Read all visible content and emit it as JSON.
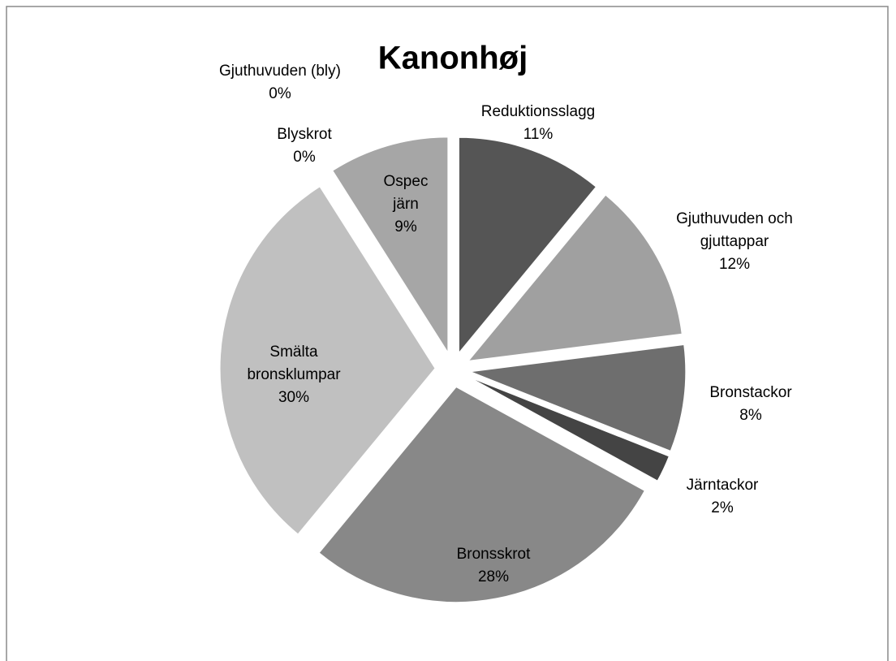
{
  "chart_data": {
    "type": "pie",
    "title": "Kanonhøj",
    "categories": [
      "Reduktionsslagg",
      "Gjuthuvuden och gjuttappar",
      "Bronstackor",
      "Järntackor",
      "Bronsskrot",
      "Smälta bronsklumpar",
      "Ospec järn",
      "Blyskrot",
      "Gjuthuvuden (bly)"
    ],
    "values": [
      11,
      12,
      8,
      2,
      28,
      30,
      9,
      0,
      0
    ],
    "value_labels": [
      "11%",
      "12%",
      "8%",
      "2%",
      "28%",
      "30%",
      "9%",
      "0%",
      "0%"
    ],
    "colors": [
      "#555555",
      "#a0a0a0",
      "#6e6e6e",
      "#444444",
      "#888888",
      "#c0c0c0",
      "#a6a6a6",
      "#999999",
      "#999999"
    ]
  }
}
